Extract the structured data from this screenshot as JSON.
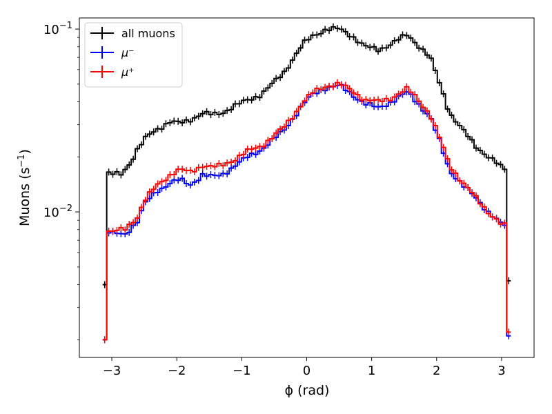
{
  "chart_data": {
    "type": "line",
    "xlabel": "ϕ (rad)",
    "ylabel": "Muons (s",
    "ylabel_sup": "−1",
    "ylabel_close": ")",
    "xlim": [
      -3.5,
      3.5
    ],
    "ylim": [
      0.0016,
      0.115
    ],
    "yscale": "log",
    "grid": false,
    "legend_position": "top-left",
    "x_ticks": [
      -3,
      -2,
      -1,
      0,
      1,
      2,
      3
    ],
    "x_tick_labels": [
      "−3",
      "−2",
      "−1",
      "0",
      "1",
      "2",
      "3"
    ],
    "y_major_ticks": [
      0.01,
      0.1
    ],
    "y_tick_labels": [
      {
        "base": "10",
        "exp": "−2"
      },
      {
        "base": "10",
        "exp": "−1"
      }
    ],
    "bins": {
      "start": -3.1416,
      "end": 3.1416,
      "count": 100
    },
    "series": [
      {
        "name": "all muons",
        "color": "#000000",
        "edge_first": 0.004,
        "edge_last": 0.0042,
        "y_knots": [
          [
            -3.14,
            0.0165
          ],
          [
            -3.0,
            0.016
          ],
          [
            -2.85,
            0.0162
          ],
          [
            -2.7,
            0.019
          ],
          [
            -2.6,
            0.022
          ],
          [
            -2.45,
            0.026
          ],
          [
            -2.3,
            0.0285
          ],
          [
            -2.1,
            0.031
          ],
          [
            -1.95,
            0.0305
          ],
          [
            -1.8,
            0.032
          ],
          [
            -1.6,
            0.0345
          ],
          [
            -1.45,
            0.034
          ],
          [
            -1.3,
            0.035
          ],
          [
            -1.1,
            0.038
          ],
          [
            -0.9,
            0.041
          ],
          [
            -0.7,
            0.044
          ],
          [
            -0.5,
            0.051
          ],
          [
            -0.35,
            0.058
          ],
          [
            -0.2,
            0.07
          ],
          [
            -0.05,
            0.083
          ],
          [
            0.1,
            0.092
          ],
          [
            0.3,
            0.1
          ],
          [
            0.5,
            0.1
          ],
          [
            0.7,
            0.092
          ],
          [
            0.9,
            0.08
          ],
          [
            1.1,
            0.077
          ],
          [
            1.3,
            0.083
          ],
          [
            1.55,
            0.093
          ],
          [
            1.7,
            0.083
          ],
          [
            1.9,
            0.07
          ],
          [
            2.05,
            0.05
          ],
          [
            2.2,
            0.035
          ],
          [
            2.4,
            0.028
          ],
          [
            2.6,
            0.023
          ],
          [
            2.8,
            0.02
          ],
          [
            3.0,
            0.0175
          ],
          [
            3.14,
            0.0165
          ]
        ]
      },
      {
        "name": "μ⁻",
        "color": "#0000ff",
        "edge_first": 0.002,
        "edge_last": 0.0021,
        "y_knots": [
          [
            -3.14,
            0.0082
          ],
          [
            -3.0,
            0.0076
          ],
          [
            -2.8,
            0.0075
          ],
          [
            -2.6,
            0.009
          ],
          [
            -2.5,
            0.011
          ],
          [
            -2.3,
            0.013
          ],
          [
            -2.1,
            0.0145
          ],
          [
            -1.95,
            0.015
          ],
          [
            -1.8,
            0.014
          ],
          [
            -1.6,
            0.016
          ],
          [
            -1.45,
            0.0155
          ],
          [
            -1.3,
            0.016
          ],
          [
            -1.1,
            0.018
          ],
          [
            -0.9,
            0.02
          ],
          [
            -0.7,
            0.022
          ],
          [
            -0.5,
            0.025
          ],
          [
            -0.35,
            0.028
          ],
          [
            -0.2,
            0.033
          ],
          [
            -0.05,
            0.039
          ],
          [
            0.1,
            0.044
          ],
          [
            0.3,
            0.048
          ],
          [
            0.5,
            0.049
          ],
          [
            0.7,
            0.044
          ],
          [
            0.9,
            0.039
          ],
          [
            1.1,
            0.037
          ],
          [
            1.3,
            0.04
          ],
          [
            1.55,
            0.045
          ],
          [
            1.7,
            0.04
          ],
          [
            1.9,
            0.033
          ],
          [
            2.05,
            0.024
          ],
          [
            2.2,
            0.017
          ],
          [
            2.4,
            0.014
          ],
          [
            2.6,
            0.012
          ],
          [
            2.8,
            0.01
          ],
          [
            3.0,
            0.0085
          ],
          [
            3.14,
            0.0083
          ]
        ]
      },
      {
        "name": "μ⁺",
        "color": "#ff0000",
        "edge_first": 0.002,
        "edge_last": 0.0022,
        "y_knots": [
          [
            -3.14,
            0.008
          ],
          [
            -3.0,
            0.0078
          ],
          [
            -2.8,
            0.008
          ],
          [
            -2.6,
            0.0095
          ],
          [
            -2.5,
            0.0115
          ],
          [
            -2.3,
            0.014
          ],
          [
            -2.1,
            0.016
          ],
          [
            -1.95,
            0.017
          ],
          [
            -1.8,
            0.0165
          ],
          [
            -1.6,
            0.018
          ],
          [
            -1.45,
            0.0175
          ],
          [
            -1.3,
            0.018
          ],
          [
            -1.1,
            0.0195
          ],
          [
            -0.9,
            0.0215
          ],
          [
            -0.7,
            0.023
          ],
          [
            -0.5,
            0.026
          ],
          [
            -0.35,
            0.029
          ],
          [
            -0.2,
            0.034
          ],
          [
            -0.05,
            0.04
          ],
          [
            0.1,
            0.045
          ],
          [
            0.3,
            0.049
          ],
          [
            0.5,
            0.05
          ],
          [
            0.7,
            0.046
          ],
          [
            0.9,
            0.041
          ],
          [
            1.1,
            0.04
          ],
          [
            1.3,
            0.042
          ],
          [
            1.55,
            0.047
          ],
          [
            1.7,
            0.042
          ],
          [
            1.9,
            0.034
          ],
          [
            2.05,
            0.025
          ],
          [
            2.2,
            0.018
          ],
          [
            2.4,
            0.0145
          ],
          [
            2.6,
            0.012
          ],
          [
            2.8,
            0.01
          ],
          [
            3.0,
            0.0085
          ],
          [
            3.14,
            0.0082
          ]
        ]
      }
    ]
  }
}
